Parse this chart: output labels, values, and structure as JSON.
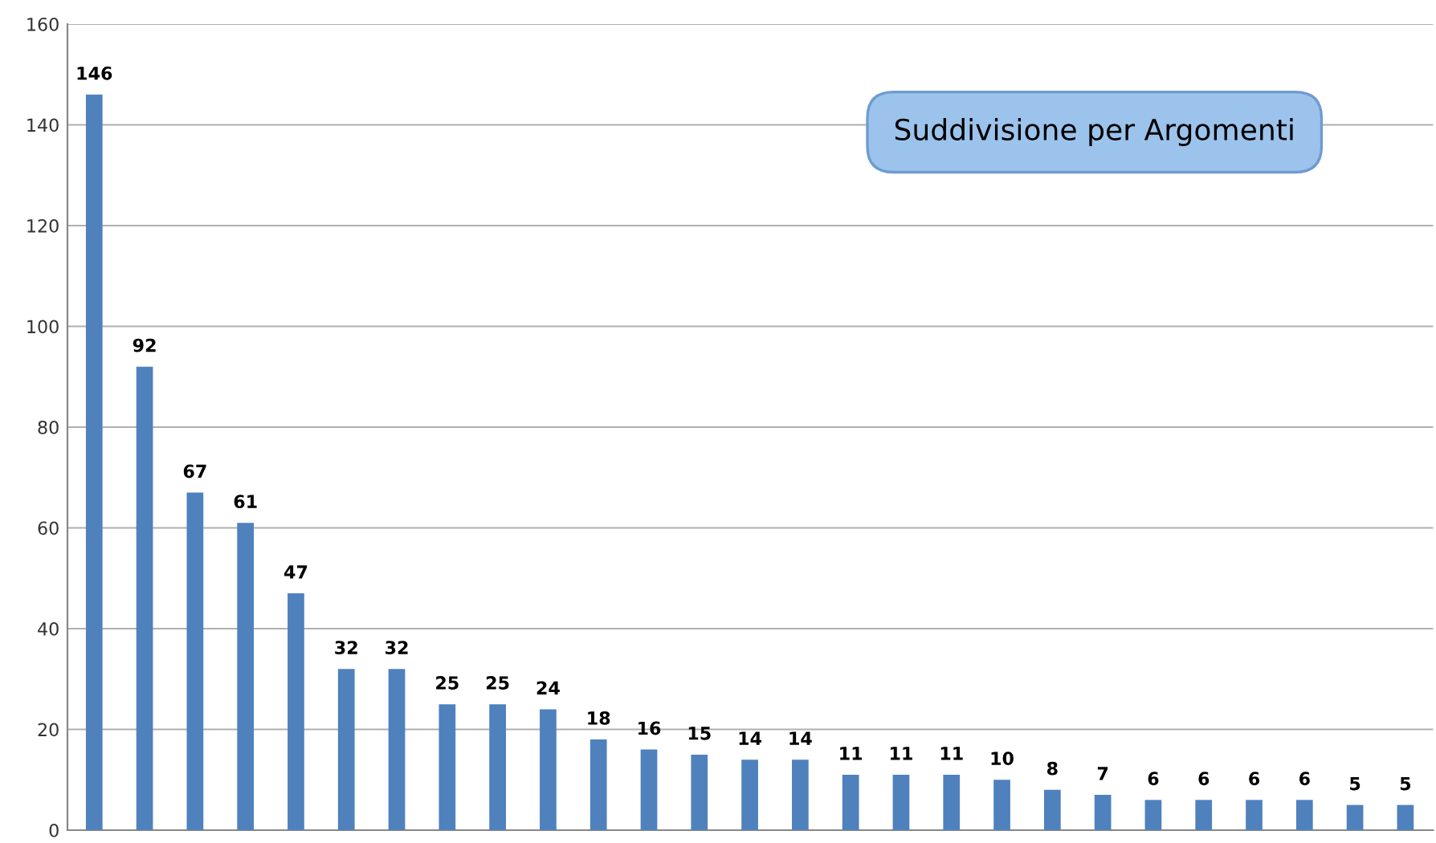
{
  "chart_data": {
    "type": "bar",
    "title": "Suddivisione per Argomenti",
    "categories": [
      null,
      null,
      null,
      null,
      null,
      null,
      null,
      null,
      null,
      null,
      null,
      null,
      null,
      null,
      null,
      null,
      null,
      null,
      null,
      null,
      null,
      null,
      null,
      null,
      null,
      null,
      null
    ],
    "values": [
      146,
      92,
      67,
      61,
      47,
      32,
      32,
      25,
      25,
      24,
      18,
      16,
      15,
      14,
      14,
      11,
      11,
      11,
      10,
      8,
      7,
      6,
      6,
      6,
      6,
      5,
      5
    ],
    "color": "#4f81bd",
    "ylim": [
      0,
      160
    ],
    "yticks": [
      0,
      20,
      40,
      60,
      80,
      100,
      120,
      140,
      160
    ],
    "grid": "y",
    "data_labels": true
  }
}
